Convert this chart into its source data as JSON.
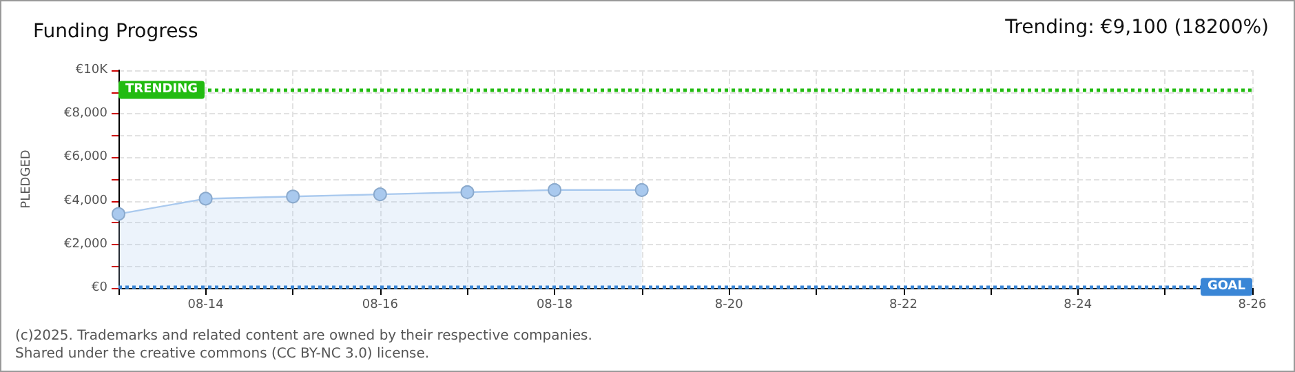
{
  "chart_data": {
    "type": "area",
    "title": "Funding Progress",
    "subtitle": "Trending: €9,100 (18200%)",
    "ylabel": "PLEDGED",
    "x": [
      "--08-13",
      "--08-14",
      "--08-15",
      "--08-16",
      "--08-17",
      "--08-18",
      "--08-19"
    ],
    "series": [
      {
        "color": "#a9c9ee",
        "values": [
          3400,
          4100,
          4200,
          4300,
          4400,
          4500,
          4500
        ]
      }
    ],
    "xlim": [
      "--08-13",
      "--08-26"
    ],
    "xticks": [
      {
        "value": "--08-13",
        "label": null
      },
      {
        "value": "--08-14",
        "label": "08-14"
      },
      {
        "value": "--08-15",
        "label": null
      },
      {
        "value": "--08-16",
        "label": "08-16"
      },
      {
        "value": "--08-17",
        "label": null
      },
      {
        "value": "--08-18",
        "label": "08-18"
      },
      {
        "value": "--08-19",
        "label": null
      },
      {
        "value": "--08-20",
        "label": "8-20"
      },
      {
        "value": "--08-21",
        "label": null
      },
      {
        "value": "--08-22",
        "label": "8-22"
      },
      {
        "value": "--08-23",
        "label": null
      },
      {
        "value": "--08-24",
        "label": "8-24"
      },
      {
        "value": "--08-25",
        "label": null
      },
      {
        "value": "--08-26",
        "label": "8-26"
      }
    ],
    "ylim": [
      0,
      10000
    ],
    "yticks": [
      {
        "value": 0,
        "label": "€0"
      },
      {
        "value": 1000,
        "label": null
      },
      {
        "value": 2000,
        "label": "€2,000"
      },
      {
        "value": 3000,
        "label": null
      },
      {
        "value": 4000,
        "label": "€4,000"
      },
      {
        "value": 5000,
        "label": null
      },
      {
        "value": 6000,
        "label": "€6,000"
      },
      {
        "value": 7000,
        "label": null
      },
      {
        "value": 8000,
        "label": "€8,000"
      },
      {
        "value": 9000,
        "label": null
      },
      {
        "value": 10000,
        "label": "€10K"
      }
    ],
    "ref_lines": [
      {
        "axis": "y",
        "value": 9100,
        "label": "TRENDING",
        "color": "#22bb11",
        "line_style": "dotted"
      },
      {
        "axis": "y",
        "value": 50,
        "label": "GOAL",
        "color": "#3a86d6",
        "line_style": "dotted"
      }
    ],
    "annotations": [
      "(c)2025. Trademarks and related content are owned by their respective companies.",
      "Shared under the creative commons (CC BY-NC 3.0) license."
    ],
    "grid": true,
    "marker": "circle",
    "line_style": "solid"
  }
}
